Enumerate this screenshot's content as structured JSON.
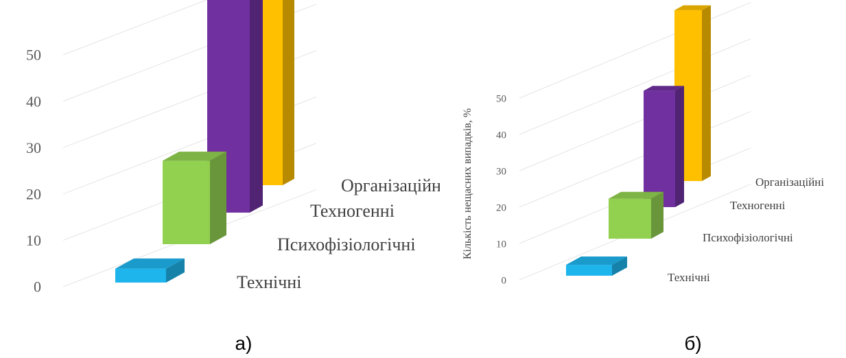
{
  "chart_data": [
    {
      "type": "bar",
      "caption": "а)",
      "categories": [
        "Технічні",
        "Психофізіологічні",
        "Техногенні",
        "Організаційні"
      ],
      "values": [
        3,
        18,
        48,
        50
      ],
      "colors": [
        "#1EB4EC",
        "#92D050",
        "#7030A0",
        "#FFC000"
      ],
      "yticks": [
        0,
        10,
        20,
        30,
        40,
        50
      ],
      "ylim": [
        0,
        55
      ],
      "ylabel": "",
      "grid": true,
      "legend": "none"
    },
    {
      "type": "bar",
      "caption": "б)",
      "categories": [
        "Технічні",
        "Психофізіологічні",
        "Техногенні",
        "Організаційні"
      ],
      "values": [
        3,
        11,
        32,
        47
      ],
      "colors": [
        "#1EB4EC",
        "#92D050",
        "#7030A0",
        "#FFC000"
      ],
      "yticks": [
        0,
        10,
        20,
        30,
        40,
        50
      ],
      "ylim": [
        0,
        55
      ],
      "ylabel": "Кількість нещасних випадків, %",
      "grid": true,
      "legend": "none"
    }
  ]
}
